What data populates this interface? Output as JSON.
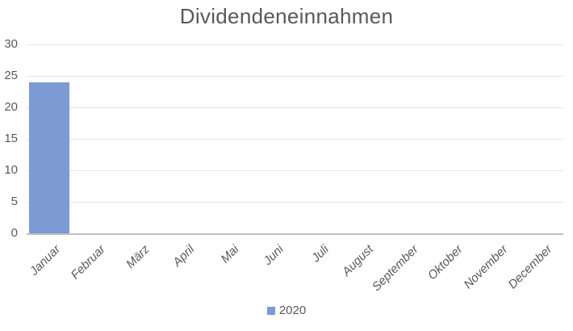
{
  "chart_data": {
    "type": "bar",
    "title": "Dividendeneinnahmen",
    "categories": [
      "Januar",
      "Februar",
      "März",
      "April",
      "Mai",
      "Juni",
      "Juli",
      "August",
      "September",
      "Oktober",
      "November",
      "December"
    ],
    "series": [
      {
        "name": "2020",
        "values": [
          24,
          0,
          0,
          0,
          0,
          0,
          0,
          0,
          0,
          0,
          0,
          0
        ]
      }
    ],
    "xlabel": "",
    "ylabel": "",
    "ylim": [
      0,
      30
    ],
    "yticks": [
      0,
      5,
      10,
      15,
      20,
      25,
      30
    ],
    "grid": true,
    "legend_position": "bottom"
  },
  "colors": {
    "bar": "#7C9AD3",
    "title_text": "#595959",
    "tick_text": "#595959",
    "gridline": "#E6E6E6",
    "axis_line": "#C0C0C0",
    "background": "#FFFFFF"
  }
}
